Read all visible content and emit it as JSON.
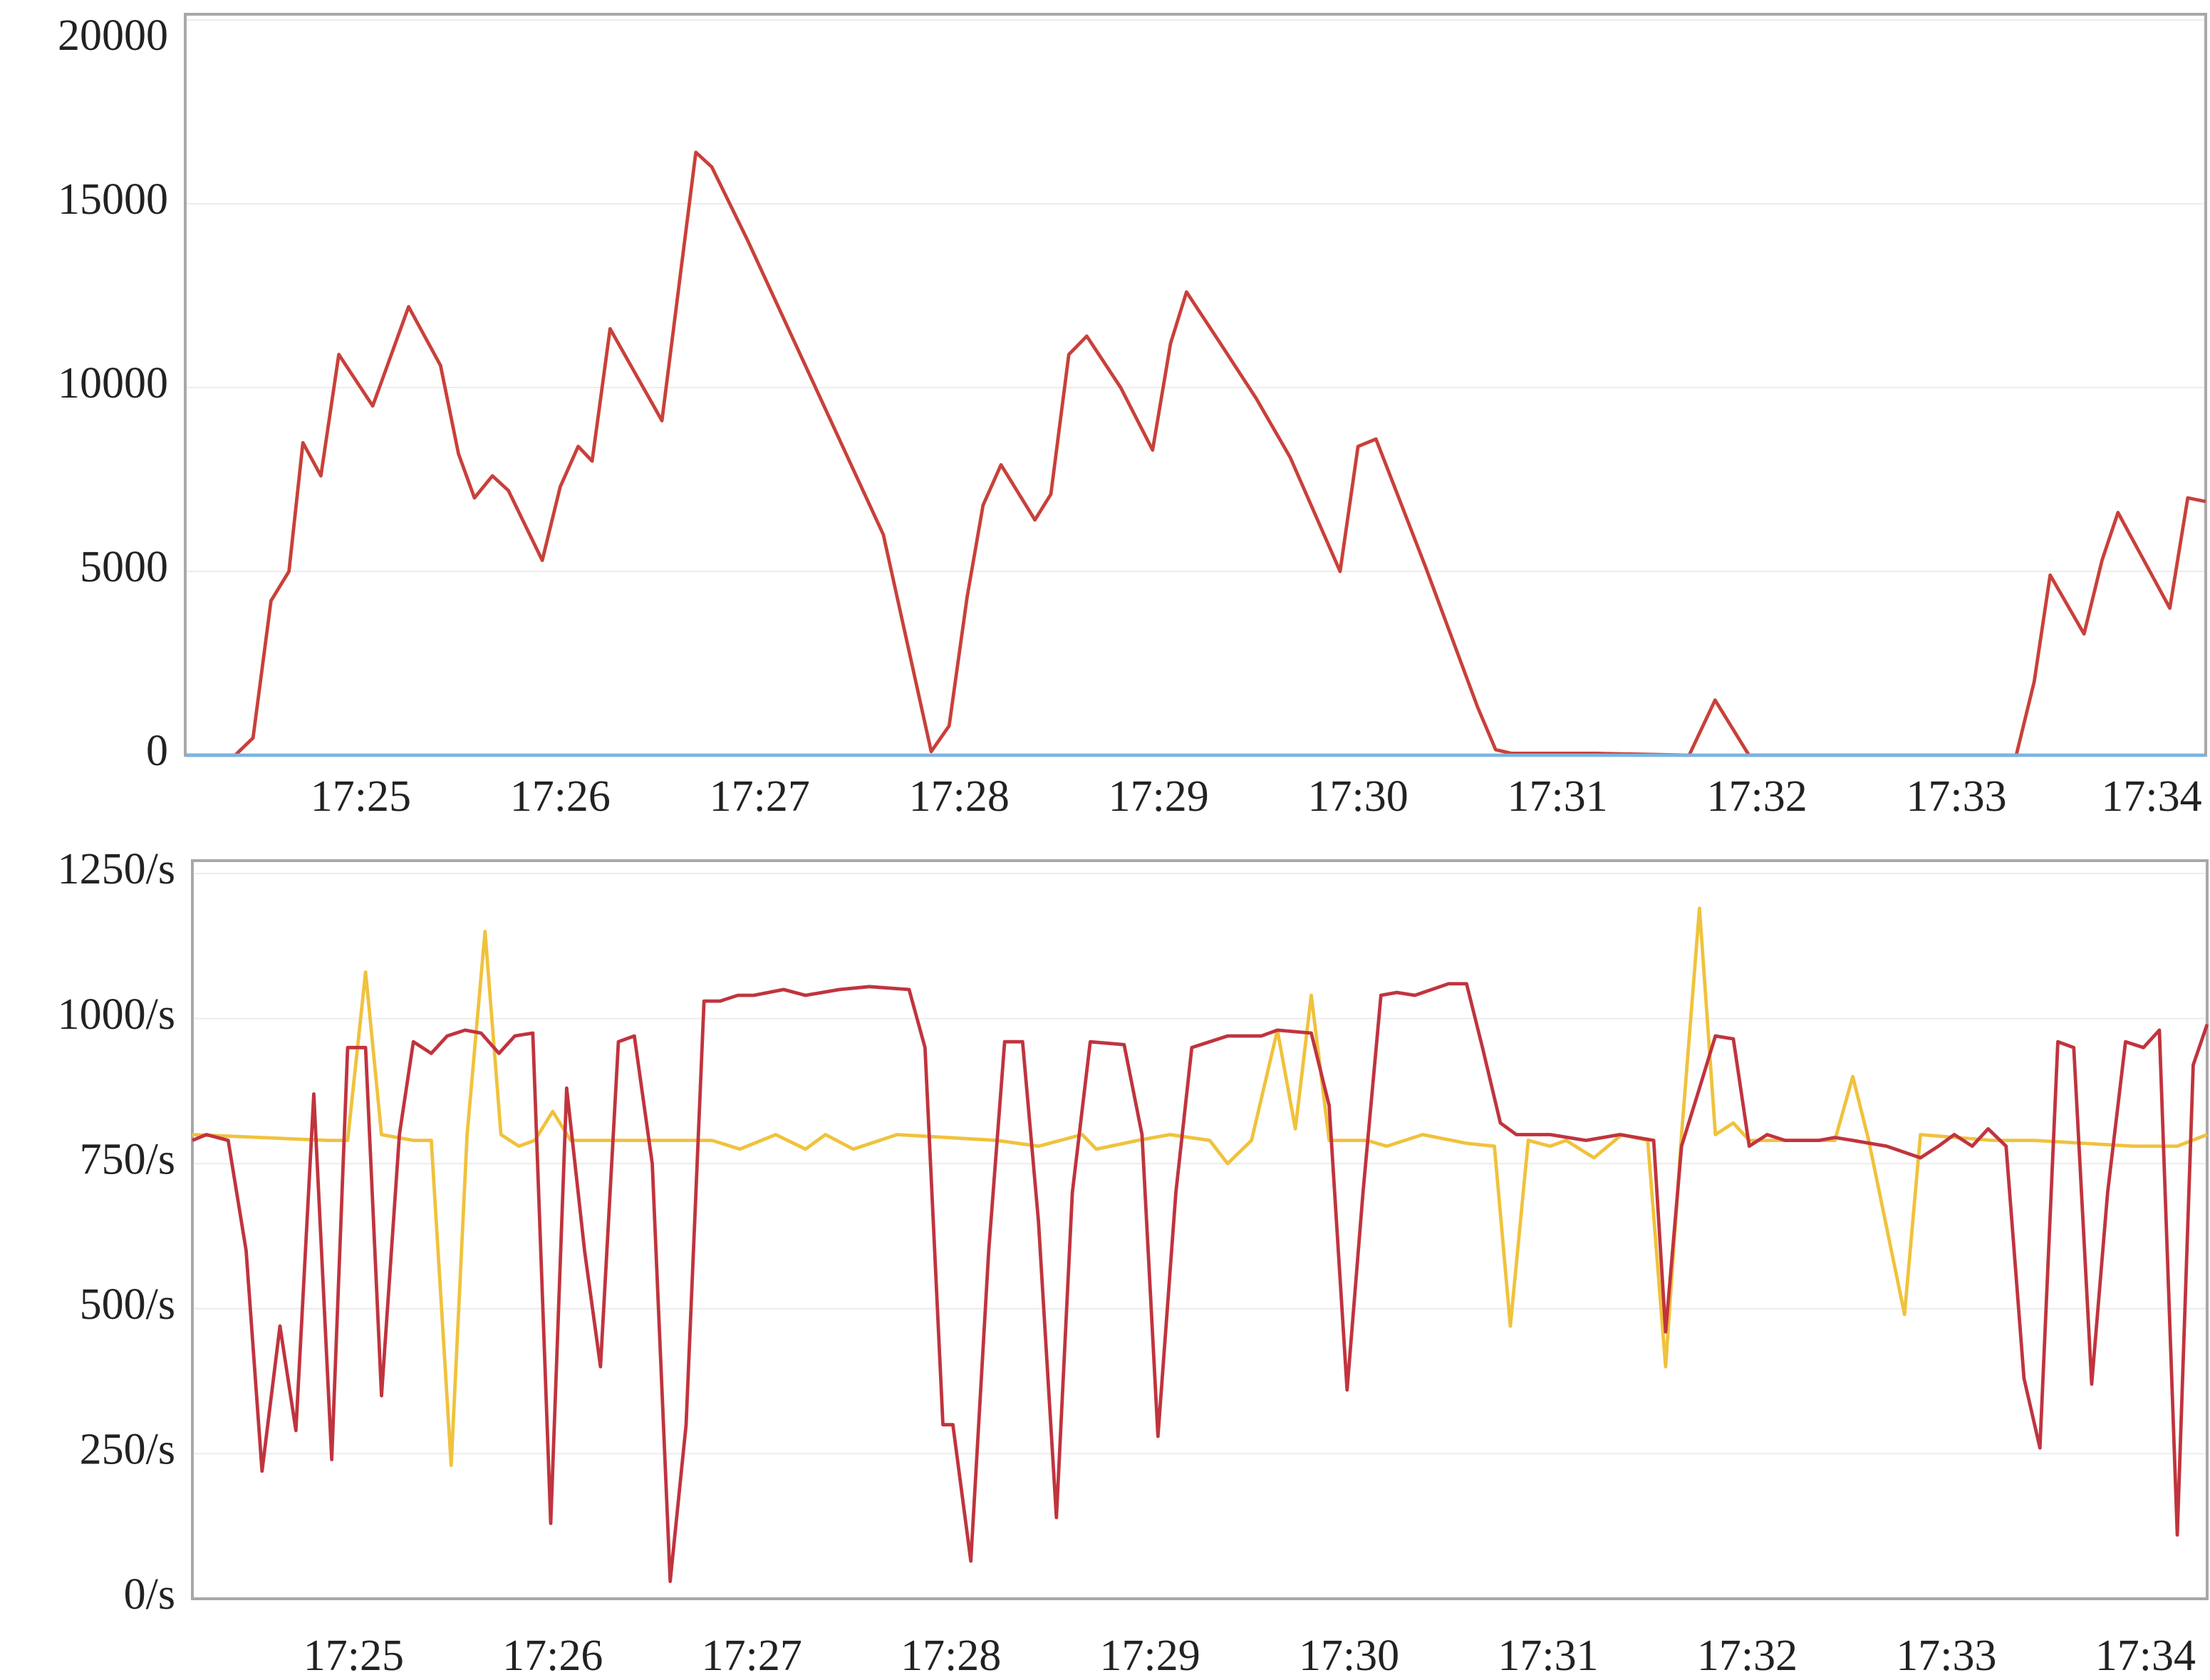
{
  "chart_data": [
    {
      "type": "line",
      "xlim": [
        24.12,
        34.25
      ],
      "xticks": [
        {
          "value": 25,
          "label": "17:25"
        },
        {
          "value": 26,
          "label": "17:26"
        },
        {
          "value": 27,
          "label": "17:27"
        },
        {
          "value": 28,
          "label": "17:28"
        },
        {
          "value": 29,
          "label": "17:29"
        },
        {
          "value": 30,
          "label": "17:30"
        },
        {
          "value": 31,
          "label": "17:31"
        },
        {
          "value": 32,
          "label": "17:32"
        },
        {
          "value": 33,
          "label": "17:33"
        },
        {
          "value": 34,
          "label": "17:34"
        }
      ],
      "ylim": [
        0,
        20000
      ],
      "yticks": [
        0,
        5000,
        10000,
        15000,
        20000
      ],
      "grid": true,
      "series": [
        {
          "color": "#c9403a",
          "x": [
            24.12,
            24.37,
            24.46,
            24.55,
            24.64,
            24.71,
            24.8,
            24.89,
            25.06,
            25.24,
            25.4,
            25.49,
            25.57,
            25.66,
            25.74,
            25.91,
            26.0,
            26.09,
            26.16,
            26.25,
            26.51,
            26.68,
            26.76,
            26.94,
            27.11,
            27.28,
            27.45,
            27.62,
            27.86,
            27.95,
            28.04,
            28.12,
            28.21,
            28.38,
            28.46,
            28.55,
            28.64,
            28.81,
            28.97,
            29.06,
            29.14,
            29.31,
            29.49,
            29.66,
            29.91,
            30.0,
            30.09,
            30.34,
            30.6,
            30.69,
            30.77,
            31.05,
            31.19,
            31.66,
            31.79,
            31.96,
            33.3,
            33.39,
            33.47,
            33.64,
            33.73,
            33.81,
            34.07,
            34.16,
            34.25
          ],
          "values": [
            0,
            0,
            470,
            4200,
            5000,
            8500,
            7600,
            10900,
            9500,
            12200,
            10600,
            8200,
            7000,
            7600,
            7200,
            5300,
            7300,
            8400,
            8000,
            11600,
            9100,
            16400,
            16000,
            14000,
            12000,
            10000,
            8000,
            6000,
            100,
            800,
            4300,
            6800,
            7900,
            6400,
            7100,
            10900,
            11400,
            10000,
            8300,
            11200,
            12600,
            11200,
            9700,
            8100,
            5000,
            8400,
            8600,
            5100,
            1300,
            150,
            50,
            50,
            50,
            0,
            1500,
            0,
            0,
            2000,
            4900,
            3300,
            5300,
            6600,
            4000,
            7000,
            6900
          ]
        },
        {
          "color": "#7ab4e2",
          "x": [
            24.12,
            34.25
          ],
          "values": [
            0,
            0
          ]
        }
      ]
    },
    {
      "type": "line",
      "xlim": [
        24.19,
        34.31
      ],
      "xticks": [
        {
          "value": 25,
          "label": "17:25"
        },
        {
          "value": 26,
          "label": "17:26"
        },
        {
          "value": 27,
          "label": "17:27"
        },
        {
          "value": 28,
          "label": "17:28"
        },
        {
          "value": 29,
          "label": "17:29"
        },
        {
          "value": 30,
          "label": "17:30"
        },
        {
          "value": 31,
          "label": "17:31"
        },
        {
          "value": 32,
          "label": "17:32"
        },
        {
          "value": 33,
          "label": "17:33"
        },
        {
          "value": 34,
          "label": "17:34"
        }
      ],
      "ylim": [
        0,
        1250
      ],
      "yticks": [
        {
          "value": 0,
          "label": "0/s"
        },
        {
          "value": 250,
          "label": "250/s"
        },
        {
          "value": 500,
          "label": "500/s"
        },
        {
          "value": 750,
          "label": "750/s"
        },
        {
          "value": 1000,
          "label": "1000/s"
        },
        {
          "value": 1250,
          "label": "1250/s"
        }
      ],
      "grid": true,
      "series": [
        {
          "color": "#f0c23c",
          "x": [
            24.19,
            24.87,
            24.97,
            25.06,
            25.14,
            25.3,
            25.39,
            25.49,
            25.57,
            25.66,
            25.74,
            25.83,
            25.91,
            26.0,
            26.09,
            26.44,
            26.8,
            26.94,
            27.12,
            27.27,
            27.37,
            27.51,
            27.73,
            28.23,
            28.44,
            28.66,
            28.73,
            28.94,
            29.1,
            29.3,
            29.39,
            29.51,
            29.64,
            29.73,
            29.81,
            29.9,
            30.09,
            30.19,
            30.37,
            30.59,
            30.73,
            30.81,
            30.9,
            31.01,
            31.09,
            31.23,
            31.37,
            31.5,
            31.59,
            31.67,
            31.76,
            31.84,
            31.93,
            32.01,
            32.44,
            32.53,
            32.61,
            32.79,
            32.87,
            33.23,
            33.44,
            33.94,
            34.16,
            34.31
          ],
          "values": [
            800,
            790,
            790,
            1080,
            800,
            790,
            790,
            230,
            800,
            1150,
            800,
            780,
            790,
            840,
            790,
            790,
            790,
            775,
            800,
            775,
            800,
            775,
            800,
            790,
            780,
            800,
            775,
            790,
            800,
            790,
            750,
            790,
            980,
            810,
            1040,
            790,
            790,
            780,
            800,
            785,
            780,
            470,
            790,
            780,
            790,
            760,
            800,
            790,
            400,
            800,
            1190,
            800,
            820,
            790,
            790,
            900,
            790,
            490,
            800,
            790,
            790,
            780,
            780,
            800
          ]
        },
        {
          "color": "#c0343e",
          "x": [
            24.19,
            24.26,
            24.37,
            24.46,
            24.54,
            24.63,
            24.71,
            24.8,
            24.89,
            24.97,
            25.06,
            25.14,
            25.23,
            25.3,
            25.39,
            25.47,
            25.56,
            25.64,
            25.73,
            25.81,
            25.9,
            25.99,
            26.07,
            26.16,
            26.24,
            26.33,
            26.41,
            26.5,
            26.59,
            26.67,
            26.76,
            26.84,
            26.93,
            27.01,
            27.16,
            27.27,
            27.44,
            27.59,
            27.79,
            27.87,
            27.96,
            28.01,
            28.1,
            28.19,
            28.27,
            28.36,
            28.44,
            28.53,
            28.61,
            28.7,
            28.87,
            28.96,
            29.04,
            29.13,
            29.21,
            29.3,
            29.39,
            29.56,
            29.64,
            29.81,
            29.9,
            29.99,
            30.07,
            30.16,
            30.24,
            30.33,
            30.5,
            30.59,
            30.67,
            30.76,
            30.84,
            31.01,
            31.19,
            31.36,
            31.53,
            31.59,
            31.67,
            31.76,
            31.84,
            31.93,
            32.01,
            32.1,
            32.19,
            32.36,
            32.44,
            32.53,
            32.7,
            32.87,
            32.96,
            33.04,
            33.13,
            33.21,
            33.3,
            33.39,
            33.47,
            33.56,
            33.64,
            33.73,
            33.81,
            33.9,
            33.99,
            34.07,
            34.16,
            34.24,
            34.31
          ],
          "values": [
            790,
            800,
            790,
            600,
            220,
            470,
            290,
            870,
            240,
            950,
            950,
            350,
            800,
            960,
            940,
            970,
            980,
            975,
            940,
            970,
            975,
            130,
            880,
            600,
            400,
            960,
            970,
            750,
            30,
            300,
            1030,
            1030,
            1040,
            1040,
            1050,
            1040,
            1050,
            1055,
            1050,
            950,
            300,
            300,
            65,
            600,
            960,
            960,
            650,
            140,
            700,
            960,
            955,
            800,
            280,
            700,
            950,
            960,
            970,
            970,
            980,
            975,
            850,
            360,
            700,
            1040,
            1045,
            1040,
            1060,
            1060,
            950,
            820,
            800,
            800,
            790,
            800,
            790,
            460,
            780,
            880,
            970,
            965,
            780,
            800,
            790,
            790,
            795,
            790,
            780,
            760,
            780,
            800,
            780,
            810,
            780,
            380,
            260,
            960,
            950,
            370,
            700,
            960,
            950,
            980,
            110,
            920,
            990
          ]
        }
      ]
    }
  ]
}
